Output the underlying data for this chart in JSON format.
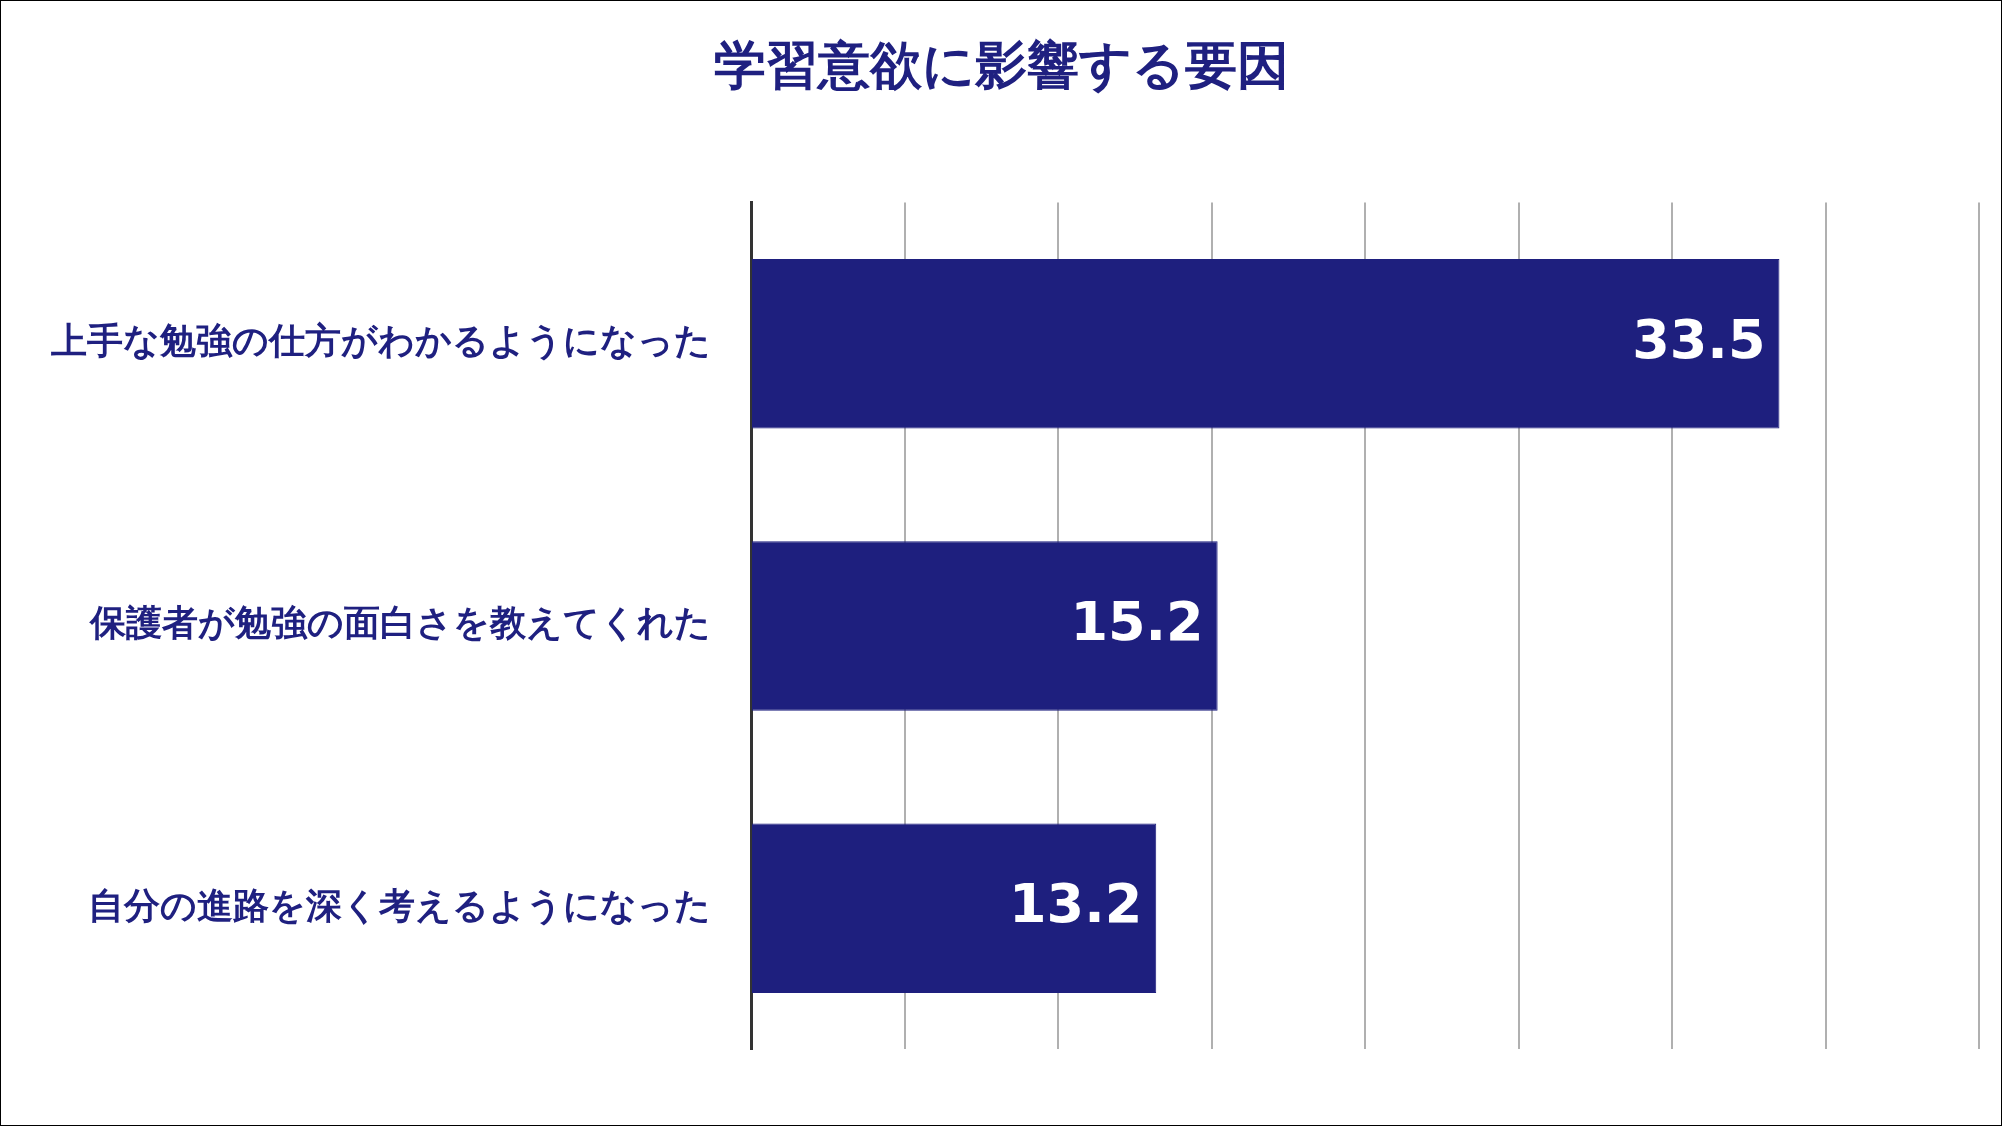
{
  "chart_data": {
    "type": "bar",
    "orientation": "horizontal",
    "title": "学習意欲に影響する要因",
    "categories": [
      "上手な勉強の仕方がわかるようになった",
      "保護者が勉強の面白さを教えてくれた",
      "自分の進路を深く考えるようになった"
    ],
    "values": [
      33.5,
      15.2,
      13.2
    ],
    "color": "#1e1f7e",
    "data_labels": true,
    "xlim": [
      0,
      40
    ],
    "xticks": [
      {
        "value": 0,
        "label": null
      },
      {
        "value": 5,
        "label": null
      },
      {
        "value": 10,
        "label": null
      },
      {
        "value": 15,
        "label": null
      },
      {
        "value": 20,
        "label": null
      },
      {
        "value": 25,
        "label": null
      },
      {
        "value": 30,
        "label": null
      },
      {
        "value": 35,
        "label": null
      },
      {
        "value": 40,
        "label": null
      }
    ],
    "grid": "x",
    "tick_labels": "y",
    "legend": false
  }
}
